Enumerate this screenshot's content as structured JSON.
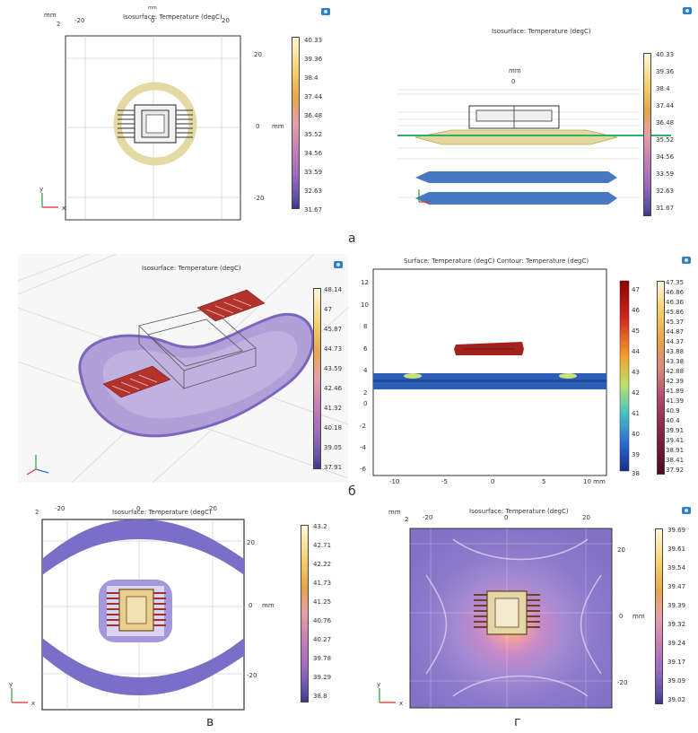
{
  "captions": {
    "a": "а",
    "b": "б",
    "v": "в",
    "g": "г"
  },
  "panel_a_left": {
    "title": "Isosurface: Temperature (degC)",
    "unit_mm": "mm",
    "unit_mm2": "mm",
    "top_ticks": [
      "2",
      "-20",
      "0",
      "20"
    ],
    "top_unit_tiny": "mm",
    "right_ticks": [
      "20",
      "0",
      "-20"
    ],
    "legend": [
      "40.33",
      "39.36",
      "38.4",
      "37.44",
      "36.48",
      "35.52",
      "34.56",
      "33.59",
      "32.63",
      "31.67"
    ]
  },
  "panel_a_right": {
    "title": "Isosurface: Temperature (degC)",
    "unit_mm": "mm",
    "zero": "0",
    "legend": [
      "40.33",
      "39.36",
      "38.4",
      "37.44",
      "36.48",
      "35.52",
      "34.56",
      "33.59",
      "32.63",
      "31.67"
    ]
  },
  "panel_b_left": {
    "title": "Isosurface: Temperature (degC)",
    "legend": [
      "48.14",
      "47",
      "45.87",
      "44.73",
      "43.59",
      "42.46",
      "41.32",
      "40.18",
      "39.05",
      "37.91"
    ]
  },
  "panel_b_right": {
    "title": "Surface: Temperature (degC)  Contour: Temperature (degC)",
    "y_ticks": [
      "12",
      "10",
      "8",
      "6",
      "4",
      "2",
      "0",
      "-2",
      "-4",
      "-6"
    ],
    "x_ticks": [
      "-10",
      "-5",
      "0",
      "5",
      "10 mm"
    ],
    "cbar_ticks": [
      "47",
      "46",
      "45",
      "44",
      "43",
      "42",
      "41",
      "40",
      "39",
      "38"
    ],
    "legend": [
      "47.35",
      "46.86",
      "46.36",
      "45.86",
      "45.37",
      "44.87",
      "44.37",
      "43.88",
      "43.38",
      "42.88",
      "42.39",
      "41.89",
      "41.39",
      "40.9",
      "40.4",
      "39.91",
      "39.41",
      "38.91",
      "38.41",
      "37.92"
    ]
  },
  "panel_v": {
    "title": "Isosurface: Temperature (degC)",
    "top_ticks": [
      "2",
      "-20",
      "0",
      "20"
    ],
    "right_ticks": [
      "20",
      "0",
      "-20"
    ],
    "unit_mm": "mm",
    "legend": [
      "43.2",
      "42.71",
      "42.22",
      "41.73",
      "41.25",
      "40.76",
      "40.27",
      "39.78",
      "39.29",
      "38.8"
    ]
  },
  "panel_g": {
    "title": "Isosurface: Temperature (degC)",
    "top_ticks": [
      "mm",
      "2",
      "-20",
      "0",
      "20"
    ],
    "right_ticks": [
      "20",
      "0",
      "-20"
    ],
    "unit_mm": "mm",
    "legend": [
      "39.69",
      "39.61",
      "39.54",
      "39.47",
      "39.39",
      "39.32",
      "39.24",
      "39.17",
      "39.09",
      "39.02"
    ]
  },
  "triad": {
    "x": "x",
    "y": "y",
    "z": "z"
  },
  "colors": {
    "ring_yellow": "#e7d99a",
    "iso_purple": "#8a7fcf",
    "iso_blue": "#4c7fc9",
    "chip_red": "#a1211c",
    "slice_green": "#27b36a"
  }
}
